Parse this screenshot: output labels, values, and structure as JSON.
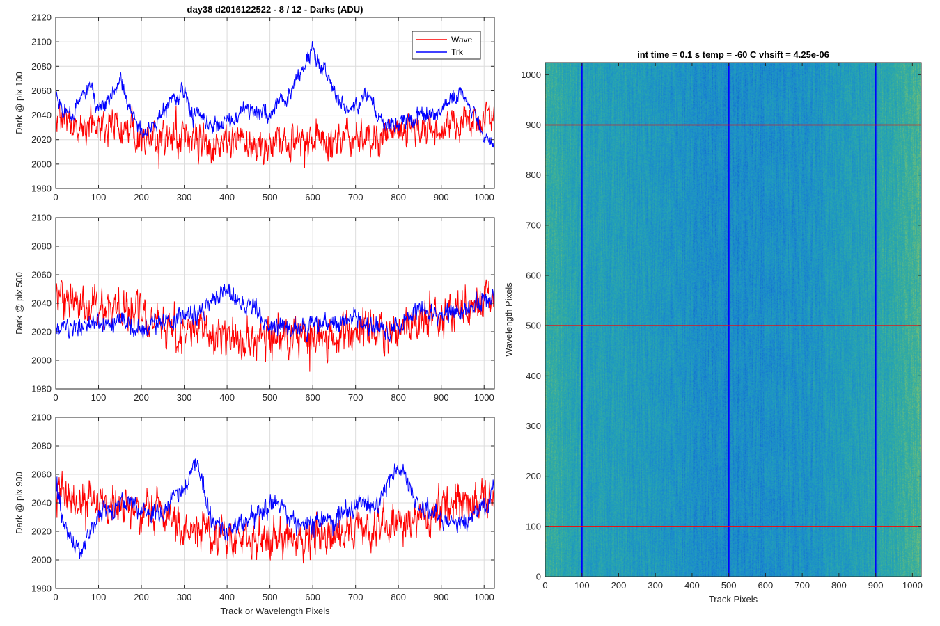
{
  "chart_data": [
    {
      "type": "line",
      "title": "day38 d2016122522 - 8 / 12 - Darks (ADU)",
      "xlabel": "",
      "ylabel": "Dark @ pix 100",
      "xlim": [
        0,
        1024
      ],
      "ylim": [
        1980,
        2120
      ],
      "xticks": [
        0,
        100,
        200,
        300,
        400,
        500,
        600,
        700,
        800,
        900,
        1000
      ],
      "yticks": [
        1980,
        2000,
        2020,
        2040,
        2060,
        2080,
        2100,
        2120
      ],
      "grid": true,
      "legend_position": "top-right",
      "x_count": 1024,
      "series": [
        {
          "name": "Wave",
          "color": "#ff0000",
          "noise": 12,
          "profile_x": [
            0,
            50,
            100,
            150,
            200,
            250,
            300,
            350,
            400,
            450,
            500,
            550,
            600,
            650,
            700,
            750,
            800,
            850,
            900,
            950,
            1000,
            1023
          ],
          "profile_y": [
            2038,
            2030,
            2034,
            2030,
            2026,
            2022,
            2019,
            2018,
            2016,
            2017,
            2016,
            2018,
            2020,
            2019,
            2021,
            2024,
            2026,
            2028,
            2030,
            2034,
            2036,
            2040
          ]
        },
        {
          "name": "Trk",
          "color": "#0000ff",
          "noise": 6,
          "profile_x": [
            0,
            20,
            40,
            60,
            80,
            100,
            120,
            150,
            170,
            200,
            230,
            260,
            300,
            320,
            350,
            380,
            400,
            420,
            440,
            470,
            500,
            520,
            550,
            580,
            600,
            620,
            650,
            680,
            700,
            730,
            750,
            780,
            800,
            830,
            850,
            880,
            900,
            920,
            950,
            980,
            1000,
            1023
          ],
          "profile_y": [
            2058,
            2042,
            2036,
            2058,
            2062,
            2046,
            2050,
            2066,
            2048,
            2026,
            2030,
            2050,
            2060,
            2040,
            2036,
            2032,
            2034,
            2036,
            2048,
            2040,
            2040,
            2050,
            2058,
            2078,
            2094,
            2080,
            2060,
            2044,
            2048,
            2058,
            2040,
            2032,
            2034,
            2036,
            2040,
            2036,
            2044,
            2054,
            2056,
            2040,
            2022,
            2018
          ]
        }
      ]
    },
    {
      "type": "line",
      "title": "",
      "xlabel": "",
      "ylabel": "Dark @ pix 500",
      "xlim": [
        0,
        1024
      ],
      "ylim": [
        1980,
        2100
      ],
      "xticks": [
        0,
        100,
        200,
        300,
        400,
        500,
        600,
        700,
        800,
        900,
        1000
      ],
      "yticks": [
        1980,
        2000,
        2020,
        2040,
        2060,
        2080,
        2100
      ],
      "grid": true,
      "x_count": 1024,
      "series": [
        {
          "name": "Wave",
          "color": "#ff0000",
          "noise": 12,
          "profile_x": [
            0,
            100,
            200,
            300,
            400,
            500,
            600,
            700,
            800,
            900,
            1000,
            1023
          ],
          "profile_y": [
            2040,
            2036,
            2032,
            2020,
            2016,
            2014,
            2016,
            2020,
            2024,
            2034,
            2040,
            2040
          ]
        },
        {
          "name": "Trk",
          "color": "#0000ff",
          "noise": 6,
          "profile_x": [
            0,
            50,
            100,
            150,
            200,
            250,
            300,
            350,
            380,
            400,
            420,
            450,
            500,
            550,
            600,
            650,
            700,
            750,
            800,
            850,
            900,
            950,
            1000,
            1023
          ],
          "profile_y": [
            2020,
            2024,
            2028,
            2026,
            2022,
            2028,
            2030,
            2034,
            2044,
            2050,
            2040,
            2038,
            2024,
            2022,
            2024,
            2026,
            2028,
            2022,
            2024,
            2036,
            2030,
            2034,
            2040,
            2046
          ]
        }
      ]
    },
    {
      "type": "line",
      "title": "",
      "xlabel": "Track or Wavelength Pixels",
      "ylabel": "Dark @ pix 900",
      "xlim": [
        0,
        1024
      ],
      "ylim": [
        1980,
        2100
      ],
      "xticks": [
        0,
        100,
        200,
        300,
        400,
        500,
        600,
        700,
        800,
        900,
        1000
      ],
      "yticks": [
        1980,
        2000,
        2020,
        2040,
        2060,
        2080,
        2100
      ],
      "grid": true,
      "x_count": 1024,
      "series": [
        {
          "name": "Wave",
          "color": "#ff0000",
          "noise": 12,
          "profile_x": [
            0,
            100,
            200,
            300,
            400,
            500,
            600,
            700,
            800,
            900,
            1000,
            1023
          ],
          "profile_y": [
            2048,
            2040,
            2034,
            2022,
            2016,
            2014,
            2016,
            2020,
            2026,
            2034,
            2044,
            2046
          ]
        },
        {
          "name": "Trk",
          "color": "#0000ff",
          "noise": 6,
          "profile_x": [
            0,
            30,
            60,
            100,
            150,
            200,
            250,
            300,
            330,
            360,
            400,
            450,
            500,
            520,
            550,
            600,
            650,
            700,
            750,
            800,
            830,
            850,
            900,
            950,
            1000,
            1023
          ],
          "profile_y": [
            2050,
            2016,
            2004,
            2030,
            2042,
            2034,
            2032,
            2054,
            2068,
            2030,
            2016,
            2030,
            2038,
            2040,
            2026,
            2024,
            2030,
            2038,
            2040,
            2066,
            2048,
            2034,
            2030,
            2026,
            2036,
            2048
          ]
        }
      ]
    },
    {
      "type": "heatmap",
      "title": "int time = 0.1 s   temp = -60 C   vhsift = 4.25e-06",
      "xlabel": "Track Pixels",
      "ylabel": "Wavelength Pixels",
      "xlim": [
        0,
        1024
      ],
      "ylim": [
        0,
        1024
      ],
      "xticks": [
        0,
        100,
        200,
        300,
        400,
        500,
        600,
        700,
        800,
        900,
        1000
      ],
      "yticks": [
        0,
        100,
        200,
        300,
        400,
        500,
        600,
        700,
        800,
        900,
        1000
      ],
      "colormap": [
        "#0f5fcf",
        "#1a87cf",
        "#22a0b8",
        "#3aaf9a",
        "#80c070",
        "#c8c44a"
      ],
      "column_profile_x": [
        0,
        50,
        100,
        200,
        300,
        400,
        500,
        600,
        700,
        800,
        900,
        950,
        1000,
        1023
      ],
      "column_profile_level": [
        0.58,
        0.5,
        0.42,
        0.4,
        0.34,
        0.28,
        0.24,
        0.26,
        0.3,
        0.36,
        0.44,
        0.52,
        0.6,
        0.64
      ],
      "vertical_markers": [
        {
          "x": 100,
          "color": "#0000ff"
        },
        {
          "x": 500,
          "color": "#0000ff"
        },
        {
          "x": 900,
          "color": "#0000ff"
        }
      ],
      "horizontal_markers": [
        {
          "y": 100,
          "color": "#ff0000"
        },
        {
          "y": 500,
          "color": "#ff0000"
        },
        {
          "y": 900,
          "color": "#ff0000"
        }
      ]
    }
  ]
}
